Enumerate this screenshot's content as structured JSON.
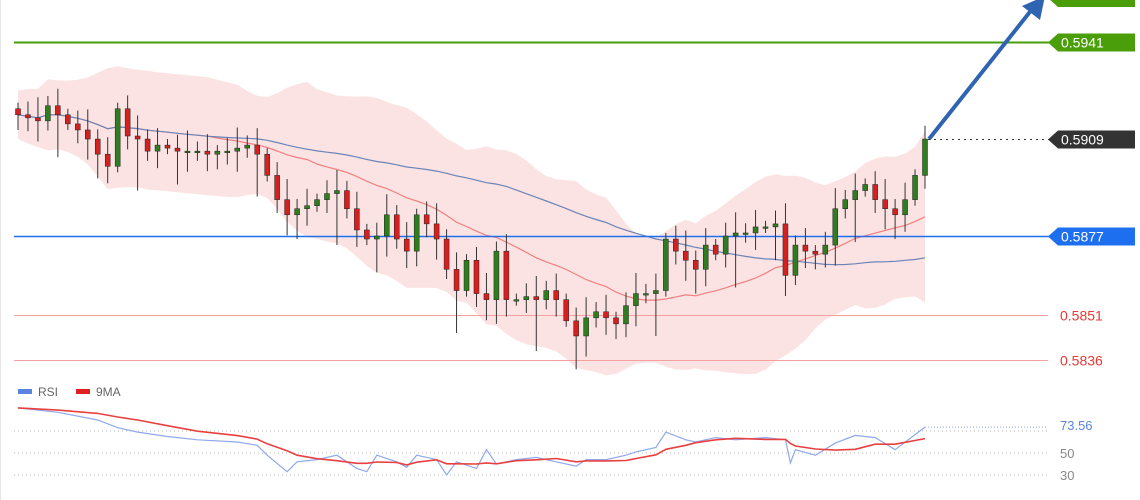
{
  "chart_data": {
    "type": "candlestick",
    "title": "",
    "price_axis": {
      "ylim": [
        0.583,
        0.5955
      ]
    },
    "closes": [
      0.5917,
      0.5916,
      0.5915,
      0.592,
      0.5917,
      0.5914,
      0.5912,
      0.5909,
      0.5904,
      0.59,
      0.5919,
      0.591,
      0.5909,
      0.5905,
      0.5907,
      0.5906,
      0.5905,
      0.5905,
      0.5905,
      0.5904,
      0.5905,
      0.5905,
      0.5906,
      0.5907,
      0.5904,
      0.5897,
      0.5889,
      0.5884,
      0.5886,
      0.5887,
      0.5889,
      0.5891,
      0.5892,
      0.5886,
      0.5879,
      0.5876,
      0.5877,
      0.5884,
      0.5876,
      0.5872,
      0.5884,
      0.5881,
      0.5876,
      0.5866,
      0.5859,
      0.5869,
      0.5858,
      0.5856,
      0.5872,
      0.5856,
      0.5856,
      0.5857,
      0.5856,
      0.5859,
      0.5856,
      0.5849,
      0.5844,
      0.585,
      0.5852,
      0.585,
      0.5848,
      0.5854,
      0.5858,
      0.5858,
      0.5859,
      0.5876,
      0.5872,
      0.5869,
      0.5866,
      0.5874,
      0.5871,
      0.5877,
      0.5878,
      0.5878,
      0.588,
      0.588,
      0.5881,
      0.5864,
      0.5874,
      0.5872,
      0.5871,
      0.5874,
      0.5886,
      0.5889,
      0.5892,
      0.5894,
      0.5889,
      0.5886,
      0.5884,
      0.5889,
      0.5897,
      0.5909
    ],
    "levels": [
      {
        "price": "0.5941",
        "value": 0.5941,
        "color": "#4a9e0a",
        "style": "box"
      },
      {
        "price": "0.5909",
        "value": 0.5909,
        "color": "#333333",
        "style": "box-dotted"
      },
      {
        "price": "0.5877",
        "value": 0.5877,
        "color": "#1e6ff0",
        "style": "box"
      },
      {
        "price": "0.5851",
        "value": 0.5851,
        "color": "#e53935",
        "style": "text"
      },
      {
        "price": "0.5836",
        "value": 0.5836,
        "color": "#e53935",
        "style": "text"
      }
    ],
    "target_arrow": {
      "from_price": 0.5909,
      "to_price": 0.5955,
      "color": "#2f64b0"
    },
    "indicators": {
      "bollinger_period": 20,
      "slow_ma_period": 50
    },
    "rsi": {
      "legend": [
        {
          "name": "RSI",
          "color": "#5b84e0"
        },
        {
          "name": "9MA",
          "color": "#e02020"
        }
      ],
      "ticks": [
        "50",
        "30"
      ],
      "last_value": "73.56",
      "points": [
        [
          0,
          91
        ],
        [
          4,
          87
        ],
        [
          8,
          80
        ],
        [
          10,
          73
        ],
        [
          12,
          69
        ],
        [
          15,
          65
        ],
        [
          18,
          62
        ],
        [
          22,
          60
        ],
        [
          24,
          57
        ],
        [
          25,
          48
        ],
        [
          27,
          33
        ],
        [
          28,
          42
        ],
        [
          30,
          44
        ],
        [
          32,
          48
        ],
        [
          34,
          36
        ],
        [
          35,
          33
        ],
        [
          36,
          48
        ],
        [
          38,
          42
        ],
        [
          39,
          37
        ],
        [
          40,
          48
        ],
        [
          42,
          44
        ],
        [
          43,
          30
        ],
        [
          44,
          42
        ],
        [
          46,
          36
        ],
        [
          47,
          53
        ],
        [
          48,
          40
        ],
        [
          50,
          44
        ],
        [
          52,
          46
        ],
        [
          54,
          42
        ],
        [
          56,
          38
        ],
        [
          57,
          44
        ],
        [
          59,
          44
        ],
        [
          61,
          48
        ],
        [
          62,
          51
        ],
        [
          64,
          55
        ],
        [
          65,
          69
        ],
        [
          67,
          62
        ],
        [
          68,
          60
        ],
        [
          70,
          64
        ],
        [
          72,
          62
        ],
        [
          75,
          64
        ],
        [
          77,
          62
        ],
        [
          77.5,
          41
        ],
        [
          78,
          53
        ],
        [
          80,
          48
        ],
        [
          82,
          59
        ],
        [
          84,
          66
        ],
        [
          86,
          64
        ],
        [
          88,
          53
        ],
        [
          91,
          73.56
        ]
      ]
    }
  }
}
